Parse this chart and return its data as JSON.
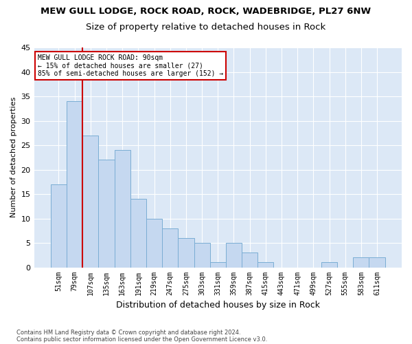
{
  "title1": "MEW GULL LODGE, ROCK ROAD, ROCK, WADEBRIDGE, PL27 6NW",
  "title2": "Size of property relative to detached houses in Rock",
  "xlabel": "Distribution of detached houses by size in Rock",
  "ylabel": "Number of detached properties",
  "footnote1": "Contains HM Land Registry data © Crown copyright and database right 2024.",
  "footnote2": "Contains public sector information licensed under the Open Government Licence v3.0.",
  "categories": [
    "51sqm",
    "79sqm",
    "107sqm",
    "135sqm",
    "163sqm",
    "191sqm",
    "219sqm",
    "247sqm",
    "275sqm",
    "303sqm",
    "331sqm",
    "359sqm",
    "387sqm",
    "415sqm",
    "443sqm",
    "471sqm",
    "499sqm",
    "527sqm",
    "555sqm",
    "583sqm",
    "611sqm"
  ],
  "values": [
    17,
    34,
    27,
    22,
    24,
    14,
    10,
    8,
    6,
    5,
    1,
    5,
    3,
    1,
    0,
    0,
    0,
    1,
    0,
    2,
    2
  ],
  "bar_color": "#c5d8f0",
  "bar_edge_color": "#7aadd4",
  "vline_color": "#cc0000",
  "vline_x_idx": 1.5,
  "annotation_text": "MEW GULL LODGE ROCK ROAD: 90sqm\n← 15% of detached houses are smaller (27)\n85% of semi-detached houses are larger (152) →",
  "annotation_box_facecolor": "#ffffff",
  "annotation_box_edgecolor": "#cc0000",
  "ylim": [
    0,
    45
  ],
  "yticks": [
    0,
    5,
    10,
    15,
    20,
    25,
    30,
    35,
    40,
    45
  ],
  "background_color": "#dce8f6",
  "grid_color": "#ffffff",
  "title1_fontsize": 9.5,
  "title2_fontsize": 9.5,
  "xlabel_fontsize": 9,
  "ylabel_fontsize": 8,
  "tick_fontsize": 7,
  "annotation_fontsize": 7,
  "footnote_fontsize": 6
}
